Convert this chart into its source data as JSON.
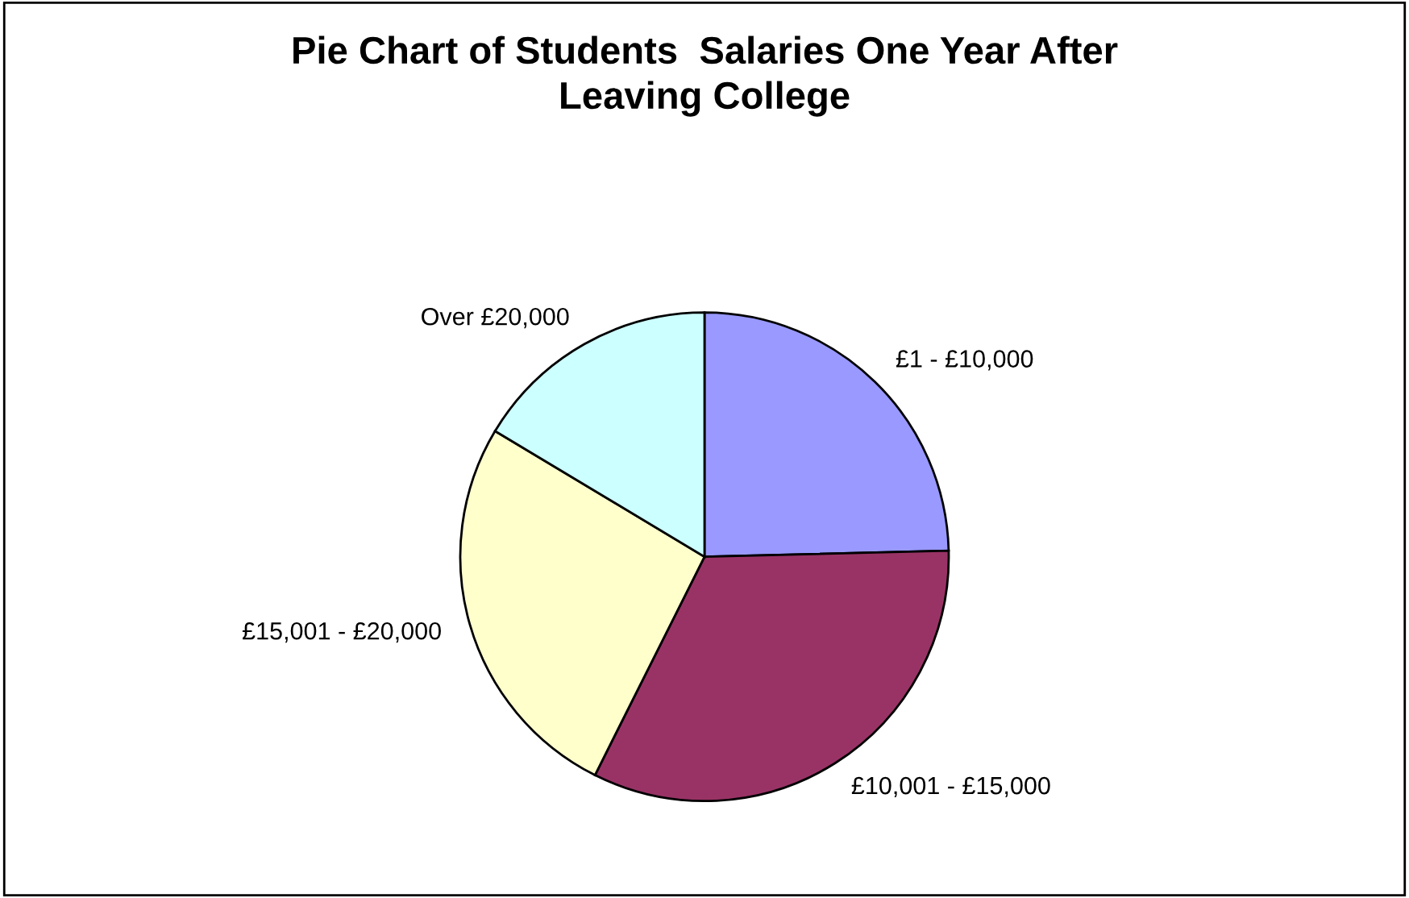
{
  "chart_data": {
    "type": "pie",
    "title": "Pie Chart of Students  Salaries One Year After\nLeaving College",
    "categories": [
      "£1 - £10,000",
      "£10,001 - £15,000",
      "£15,001 - £20,000",
      "Over £20,000"
    ],
    "values": [
      24.6,
      32.8,
      26.2,
      16.4
    ],
    "colors": [
      "#9999ff",
      "#993366",
      "#ffffcc",
      "#ccffff"
    ]
  }
}
